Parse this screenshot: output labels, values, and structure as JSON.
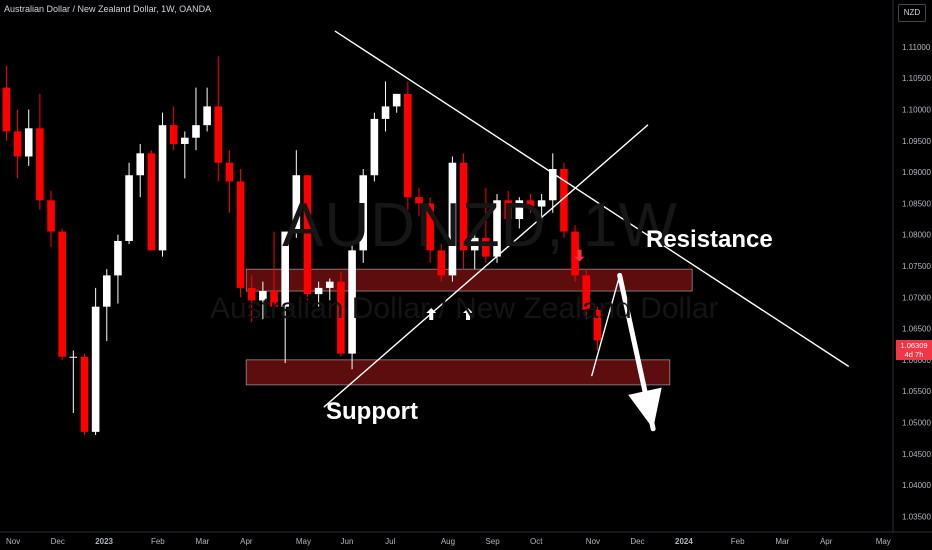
{
  "header": {
    "title": "Australian Dollar / New Zealand Dollar, 1W, OANDA",
    "currency": "NZD"
  },
  "watermark": {
    "symbol": "AUDNZD, 1W",
    "name": "Australian Dollar / New Zealand Dollar"
  },
  "annotations": {
    "resistance": "Resistance",
    "support": "Support"
  },
  "last_price": {
    "value": "1.06309",
    "countdown": "4d 7h"
  },
  "colors": {
    "up": "#ffffff",
    "down": "#ff0000",
    "zone": "#6e0f12",
    "trendline": "#ffffff",
    "background": "#000000"
  },
  "chart_data": {
    "type": "candlestick",
    "symbol": "AUDNZD",
    "timeframe": "1W",
    "ylim": [
      1.0325,
      1.1175
    ],
    "yticks": [
      1.035,
      1.04,
      1.045,
      1.05,
      1.055,
      1.06,
      1.065,
      1.07,
      1.075,
      1.08,
      1.085,
      1.09,
      1.095,
      1.1,
      1.105,
      1.11
    ],
    "xtick_labels": [
      "Nov",
      "Dec",
      "2023",
      "Feb",
      "Mar",
      "Apr",
      "May",
      "Jun",
      "Jul",
      "Aug",
      "Sep",
      "Oct",
      "Nov",
      "Dec",
      "2024",
      "Feb",
      "Mar",
      "Apr",
      "May"
    ],
    "xtick_weeks": [
      0,
      4,
      8,
      13,
      17,
      21,
      26,
      30,
      34,
      39,
      43,
      47,
      52,
      56,
      60,
      65,
      69,
      73,
      78
    ],
    "candles": [
      {
        "w": -0.5,
        "o": 1.1035,
        "h": 1.107,
        "l": 1.095,
        "c": 1.0965
      },
      {
        "w": 0.5,
        "o": 1.0965,
        "h": 1.1,
        "l": 1.089,
        "c": 1.0925
      },
      {
        "w": 1.5,
        "o": 1.0925,
        "h": 1.1,
        "l": 1.091,
        "c": 1.097
      },
      {
        "w": 2.5,
        "o": 1.097,
        "h": 1.1025,
        "l": 1.084,
        "c": 1.0855
      },
      {
        "w": 3.5,
        "o": 1.0855,
        "h": 1.087,
        "l": 1.078,
        "c": 1.0805
      },
      {
        "w": 4.5,
        "o": 1.0805,
        "h": 1.081,
        "l": 1.06,
        "c": 1.0605
      },
      {
        "w": 5.5,
        "o": 1.0605,
        "h": 1.0615,
        "l": 1.0515,
        "c": 1.0605
      },
      {
        "w": 6.5,
        "o": 1.0605,
        "h": 1.061,
        "l": 1.048,
        "c": 1.0485
      },
      {
        "w": 7.5,
        "o": 1.0485,
        "h": 1.0715,
        "l": 1.048,
        "c": 1.0685
      },
      {
        "w": 8.5,
        "o": 1.0685,
        "h": 1.0745,
        "l": 1.063,
        "c": 1.0735
      },
      {
        "w": 9.5,
        "o": 1.0735,
        "h": 1.08,
        "l": 1.069,
        "c": 1.079
      },
      {
        "w": 10.5,
        "o": 1.079,
        "h": 1.0915,
        "l": 1.0785,
        "c": 1.0895
      },
      {
        "w": 11.5,
        "o": 1.0895,
        "h": 1.0945,
        "l": 1.086,
        "c": 1.093
      },
      {
        "w": 12.5,
        "o": 1.093,
        "h": 1.0935,
        "l": 1.0775,
        "c": 1.0775
      },
      {
        "w": 13.5,
        "o": 1.0775,
        "h": 1.0995,
        "l": 1.0765,
        "c": 1.0975
      },
      {
        "w": 14.5,
        "o": 1.0975,
        "h": 1.1005,
        "l": 1.0935,
        "c": 1.0945
      },
      {
        "w": 15.5,
        "o": 1.0945,
        "h": 1.0965,
        "l": 1.089,
        "c": 1.0955
      },
      {
        "w": 16.5,
        "o": 1.0955,
        "h": 1.1035,
        "l": 1.0935,
        "c": 1.0975
      },
      {
        "w": 17.5,
        "o": 1.0975,
        "h": 1.1035,
        "l": 1.0965,
        "c": 1.1005
      },
      {
        "w": 18.5,
        "o": 1.1005,
        "h": 1.1085,
        "l": 1.0885,
        "c": 1.0915
      },
      {
        "w": 19.5,
        "o": 1.0915,
        "h": 1.0935,
        "l": 1.0835,
        "c": 1.0885
      },
      {
        "w": 20.5,
        "o": 1.0885,
        "h": 1.0905,
        "l": 1.07,
        "c": 1.0715
      },
      {
        "w": 21.5,
        "o": 1.0715,
        "h": 1.0735,
        "l": 1.066,
        "c": 1.0695
      },
      {
        "w": 22.5,
        "o": 1.0695,
        "h": 1.0725,
        "l": 1.0665,
        "c": 1.071
      },
      {
        "w": 23.5,
        "o": 1.071,
        "h": 1.0805,
        "l": 1.0675,
        "c": 1.0685
      },
      {
        "w": 24.5,
        "o": 1.0685,
        "h": 1.0805,
        "l": 1.0595,
        "c": 1.0805
      },
      {
        "w": 25.5,
        "o": 1.0805,
        "h": 1.0935,
        "l": 1.0795,
        "c": 1.0895
      },
      {
        "w": 26.5,
        "o": 1.0895,
        "h": 1.0895,
        "l": 1.0695,
        "c": 1.0705
      },
      {
        "w": 27.5,
        "o": 1.0705,
        "h": 1.0725,
        "l": 1.0685,
        "c": 1.0715
      },
      {
        "w": 28.5,
        "o": 1.0715,
        "h": 1.073,
        "l": 1.0695,
        "c": 1.0725
      },
      {
        "w": 29.5,
        "o": 1.0725,
        "h": 1.074,
        "l": 1.0605,
        "c": 1.061
      },
      {
        "w": 30.5,
        "o": 1.061,
        "h": 1.0785,
        "l": 1.0585,
        "c": 1.0775
      },
      {
        "w": 31.5,
        "o": 1.0775,
        "h": 1.0905,
        "l": 1.0755,
        "c": 1.0895
      },
      {
        "w": 32.5,
        "o": 1.0895,
        "h": 1.0995,
        "l": 1.0885,
        "c": 1.0985
      },
      {
        "w": 33.5,
        "o": 1.0985,
        "h": 1.1045,
        "l": 1.0965,
        "c": 1.1005
      },
      {
        "w": 34.5,
        "o": 1.1005,
        "h": 1.1025,
        "l": 1.0995,
        "c": 1.1025
      },
      {
        "w": 35.5,
        "o": 1.1025,
        "h": 1.1045,
        "l": 1.084,
        "c": 1.086
      },
      {
        "w": 36.5,
        "o": 1.086,
        "h": 1.0875,
        "l": 1.083,
        "c": 1.085
      },
      {
        "w": 37.5,
        "o": 1.085,
        "h": 1.086,
        "l": 1.0755,
        "c": 1.0775
      },
      {
        "w": 38.5,
        "o": 1.0775,
        "h": 1.0785,
        "l": 1.0725,
        "c": 1.0735
      },
      {
        "w": 39.5,
        "o": 1.0735,
        "h": 1.0925,
        "l": 1.0725,
        "c": 1.0915
      },
      {
        "w": 40.5,
        "o": 1.0915,
        "h": 1.093,
        "l": 1.0745,
        "c": 1.0775
      },
      {
        "w": 41.5,
        "o": 1.0775,
        "h": 1.0805,
        "l": 1.0745,
        "c": 1.0795
      },
      {
        "w": 42.5,
        "o": 1.0795,
        "h": 1.0875,
        "l": 1.0755,
        "c": 1.0765
      },
      {
        "w": 43.5,
        "o": 1.0765,
        "h": 1.0865,
        "l": 1.0755,
        "c": 1.0855
      },
      {
        "w": 44.5,
        "o": 1.0855,
        "h": 1.087,
        "l": 1.0815,
        "c": 1.0825
      },
      {
        "w": 45.5,
        "o": 1.0825,
        "h": 1.086,
        "l": 1.081,
        "c": 1.0855
      },
      {
        "w": 46.5,
        "o": 1.0855,
        "h": 1.0865,
        "l": 1.0835,
        "c": 1.0845
      },
      {
        "w": 47.5,
        "o": 1.0845,
        "h": 1.0865,
        "l": 1.082,
        "c": 1.0855
      },
      {
        "w": 48.5,
        "o": 1.0855,
        "h": 1.093,
        "l": 1.0835,
        "c": 1.0905
      },
      {
        "w": 49.5,
        "o": 1.0905,
        "h": 1.0915,
        "l": 1.0795,
        "c": 1.0805
      },
      {
        "w": 50.5,
        "o": 1.0805,
        "h": 1.0815,
        "l": 1.0725,
        "c": 1.0735
      },
      {
        "w": 51.5,
        "o": 1.0735,
        "h": 1.0745,
        "l": 1.0665,
        "c": 1.068
      },
      {
        "w": 52.5,
        "o": 1.068,
        "h": 1.0685,
        "l": 1.0615,
        "c": 1.0631
      }
    ],
    "zones": [
      {
        "name": "resistance-zone",
        "w_start": 21.0,
        "w_end": 61.0,
        "y_top": 1.0745,
        "y_bottom": 1.071
      },
      {
        "name": "support-zone",
        "w_start": 21.0,
        "w_end": 59.0,
        "y_top": 1.06,
        "y_bottom": 1.056
      }
    ],
    "lines": [
      {
        "name": "resistance-trendline",
        "from": [
          29.0,
          1.1125
        ],
        "to": [
          75.0,
          1.059
        ]
      },
      {
        "name": "support-trendline",
        "from": [
          28.0,
          1.0525
        ],
        "to": [
          57.0,
          1.0975
        ]
      },
      {
        "name": "projection-line-up",
        "from": [
          52.0,
          1.0575
        ],
        "to": [
          54.5,
          1.0735
        ]
      },
      {
        "name": "projection-arrow",
        "from": [
          54.5,
          1.0735
        ],
        "to": [
          57.5,
          1.049
        ]
      }
    ],
    "markers": [
      {
        "name": "up-arrow-1",
        "w": 37.6,
        "y": 1.0675,
        "dir": "up",
        "color": "#ffffff"
      },
      {
        "name": "up-arrow-2",
        "w": 40.9,
        "y": 1.0675,
        "dir": "up",
        "color": "#ffffff"
      },
      {
        "name": "down-arrow-1",
        "w": 50.9,
        "y": 1.0765,
        "dir": "down",
        "color": "#f23645"
      }
    ]
  }
}
